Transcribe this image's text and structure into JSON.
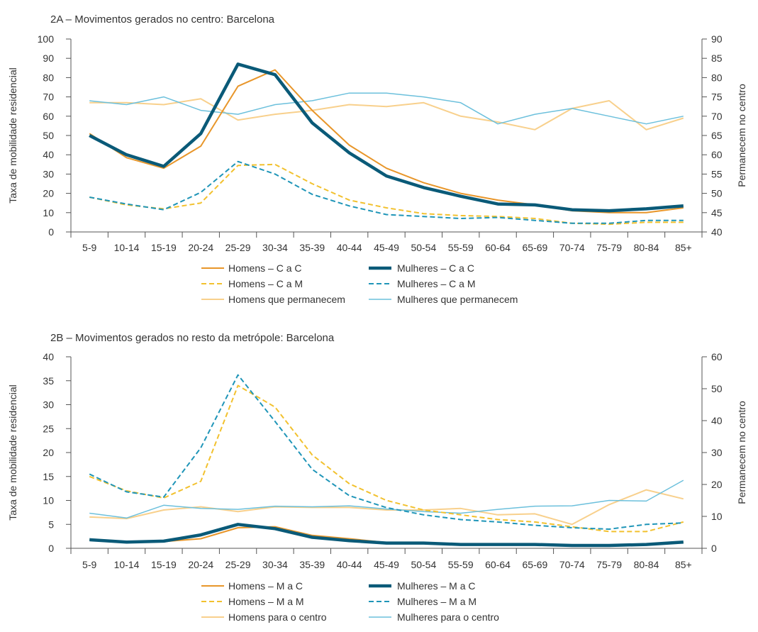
{
  "chart_data": [
    {
      "type": "line",
      "title": "2A – Movimentos gerados no centro: Barcelona",
      "ylabel": "Taxa de mobilidade residencial",
      "y2label": "Permanecem no centro",
      "ylim": [
        0,
        100
      ],
      "yticks": [
        0,
        10,
        20,
        30,
        40,
        50,
        60,
        70,
        80,
        90,
        100
      ],
      "y2lim": [
        40,
        90
      ],
      "y2ticks": [
        40,
        45,
        50,
        55,
        60,
        65,
        70,
        75,
        80,
        85,
        90
      ],
      "categories": [
        "5-9",
        "10-14",
        "15-19",
        "20-24",
        "25-29",
        "30-34",
        "35-39",
        "40-44",
        "45-49",
        "50-54",
        "55-59",
        "60-64",
        "65-69",
        "70-74",
        "75-79",
        "80-84",
        "85+"
      ],
      "grid": false,
      "legend_position": "bottom",
      "series": [
        {
          "name": "Homens – C a C",
          "axis": "left",
          "color": "#e8962a",
          "style": "solid",
          "width": 2,
          "values": [
            51,
            38.5,
            33,
            44.5,
            75.5,
            84,
            63,
            45,
            33,
            25.5,
            20,
            16.5,
            14,
            11,
            10,
            10,
            12.5
          ]
        },
        {
          "name": "Mulheres – C a C",
          "axis": "left",
          "color": "#0a5a78",
          "style": "solid",
          "width": 4.5,
          "values": [
            50,
            40,
            34,
            51,
            87,
            81.5,
            56.5,
            41,
            29,
            23,
            18.5,
            14.5,
            14,
            11.5,
            11,
            12,
            13.5
          ]
        },
        {
          "name": "Homens – C a M",
          "axis": "left",
          "color": "#f2c12e",
          "style": "dashed",
          "width": 2,
          "values": [
            18,
            14,
            12,
            15,
            34.5,
            35,
            25,
            16.5,
            12.5,
            9.5,
            8.5,
            8,
            7,
            4.5,
            4,
            5,
            5
          ]
        },
        {
          "name": "Mulheres – C a M",
          "axis": "left",
          "color": "#1f95b8",
          "style": "dashed",
          "width": 2,
          "values": [
            18,
            14.5,
            11.5,
            20.5,
            36.5,
            30,
            19.5,
            13.5,
            9,
            8,
            7,
            7.5,
            6,
            4.5,
            4.5,
            6,
            6
          ]
        },
        {
          "name": "Homens que permanecem",
          "axis": "right",
          "color": "#f8d08c",
          "style": "solid",
          "width": 2,
          "values": [
            73.5,
            73.5,
            73,
            74.5,
            69,
            70.5,
            71.5,
            73,
            72.5,
            73.5,
            70,
            68.5,
            66.5,
            72,
            74,
            66.5,
            69.5
          ]
        },
        {
          "name": "Mulheres que permanecem",
          "axis": "right",
          "color": "#6cc0dc",
          "style": "solid",
          "width": 1.5,
          "values": [
            74,
            73,
            75,
            71.5,
            70.5,
            73,
            74,
            76,
            76,
            75,
            73.5,
            68,
            70.5,
            72,
            70,
            68,
            70
          ]
        }
      ]
    },
    {
      "type": "line",
      "title": "2B – Movimentos gerados no resto da metrópole: Barcelona",
      "ylabel": "Taxa de mobilidade residencial",
      "y2label": "Permanecem no centro",
      "ylim": [
        0,
        40
      ],
      "yticks": [
        0,
        5,
        10,
        15,
        20,
        25,
        30,
        35,
        40
      ],
      "y2lim": [
        0,
        60
      ],
      "y2ticks": [
        0,
        10,
        20,
        30,
        40,
        50,
        60
      ],
      "categories": [
        "5-9",
        "10-14",
        "15-19",
        "20-24",
        "25-29",
        "30-34",
        "35-39",
        "40-44",
        "45-49",
        "50-54",
        "55-59",
        "60-64",
        "65-69",
        "70-74",
        "75-79",
        "80-84",
        "85+"
      ],
      "grid": false,
      "legend_position": "bottom",
      "series": [
        {
          "name": "Homens – M a C",
          "axis": "left",
          "color": "#e8962a",
          "style": "solid",
          "width": 2,
          "values": [
            1.8,
            1.3,
            1.4,
            2,
            4.3,
            4.5,
            2.7,
            2,
            1.2,
            1,
            0.8,
            0.8,
            0.7,
            0.6,
            0.6,
            0.8,
            1.2
          ]
        },
        {
          "name": "Mulheres – M a C",
          "axis": "left",
          "color": "#0a5a78",
          "style": "solid",
          "width": 4.5,
          "values": [
            1.8,
            1.3,
            1.5,
            2.8,
            5,
            4.1,
            2.3,
            1.6,
            1.1,
            1.1,
            0.8,
            0.8,
            0.8,
            0.6,
            0.6,
            0.8,
            1.3
          ]
        },
        {
          "name": "Homens – M a M",
          "axis": "left",
          "color": "#f2c12e",
          "style": "dashed",
          "width": 2,
          "values": [
            15,
            12,
            10.5,
            14,
            34,
            29.5,
            19.5,
            13.5,
            10,
            8,
            7,
            6,
            5.5,
            4.5,
            3.5,
            3.5,
            5.5
          ]
        },
        {
          "name": "Mulheres – M a M",
          "axis": "left",
          "color": "#1f95b8",
          "style": "dashed",
          "width": 2,
          "values": [
            15.5,
            11.8,
            10.7,
            21,
            36.2,
            26.5,
            16.5,
            11,
            8.5,
            7,
            6,
            5.5,
            4.8,
            4.3,
            4,
            5,
            5.3
          ]
        },
        {
          "name": "Homens para o centro",
          "axis": "right",
          "color": "#f8d08c",
          "style": "solid",
          "width": 2,
          "values": [
            9.8,
            9.3,
            12,
            13,
            11.5,
            13,
            12.8,
            12.8,
            12,
            12,
            12.5,
            10.5,
            10.8,
            7.5,
            13.7,
            18.3,
            15.5
          ]
        },
        {
          "name": "Mulheres para o centro",
          "axis": "right",
          "color": "#6cc0dc",
          "style": "solid",
          "width": 1.5,
          "values": [
            11,
            9.5,
            13.5,
            12.5,
            12.2,
            13.2,
            13,
            13.3,
            12.3,
            11.5,
            11,
            12.2,
            13.2,
            13.3,
            15,
            14.8,
            21.3
          ]
        }
      ]
    }
  ]
}
